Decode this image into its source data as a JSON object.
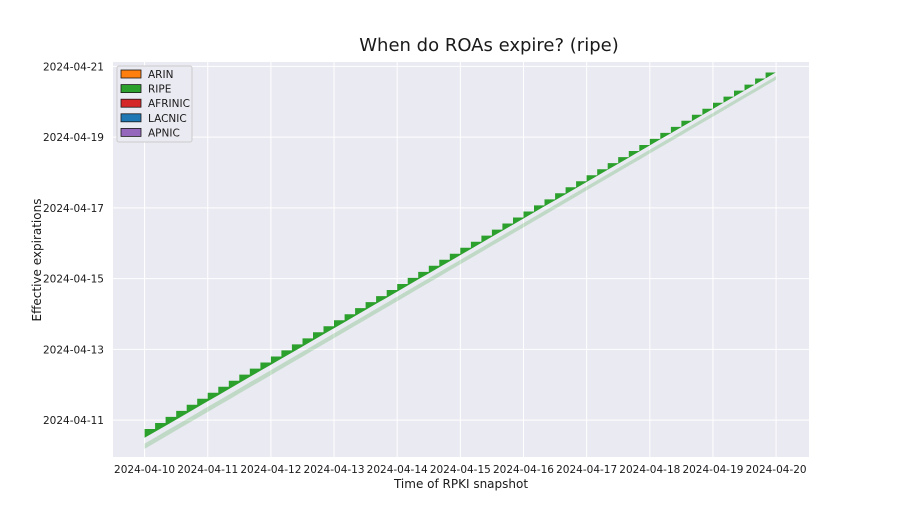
{
  "chart_data": {
    "type": "area",
    "title": "When do ROAs expire? (ripe)",
    "xlabel": "Time of RPKI snapshot",
    "ylabel": "Effective expirations",
    "x_ticks": [
      "2024-04-10",
      "2024-04-11",
      "2024-04-12",
      "2024-04-13",
      "2024-04-14",
      "2024-04-15",
      "2024-04-16",
      "2024-04-17",
      "2024-04-18",
      "2024-04-19",
      "2024-04-20"
    ],
    "y_ticks": [
      "2024-04-11",
      "2024-04-13",
      "2024-04-15",
      "2024-04-17",
      "2024-04-19",
      "2024-04-21"
    ],
    "xlim": [
      "2024-04-09T12:00",
      "2024-04-20T12:30"
    ],
    "ylim": [
      "2024-04-09T23:00",
      "2024-04-21T03:00"
    ],
    "grid": true,
    "legend_position": "top-left",
    "legend": [
      {
        "name": "ARIN",
        "color": "#ff7f0e"
      },
      {
        "name": "RIPE",
        "color": "#2ca02c"
      },
      {
        "name": "AFRINIC",
        "color": "#d62728"
      },
      {
        "name": "LACNIC",
        "color": "#1f77b4"
      },
      {
        "name": "APNIC",
        "color": "#9467bd"
      }
    ],
    "series": [
      {
        "name": "RIPE",
        "color": "#2ca02c",
        "x": [
          "2024-04-10T00:00",
          "2024-04-20T00:00"
        ],
        "upper_start": "2024-04-10T18:00",
        "upper_end": "2024-04-21T00:00",
        "lower_start": "2024-04-10T06:00",
        "lower_end": "2024-04-20T16:00"
      }
    ]
  }
}
